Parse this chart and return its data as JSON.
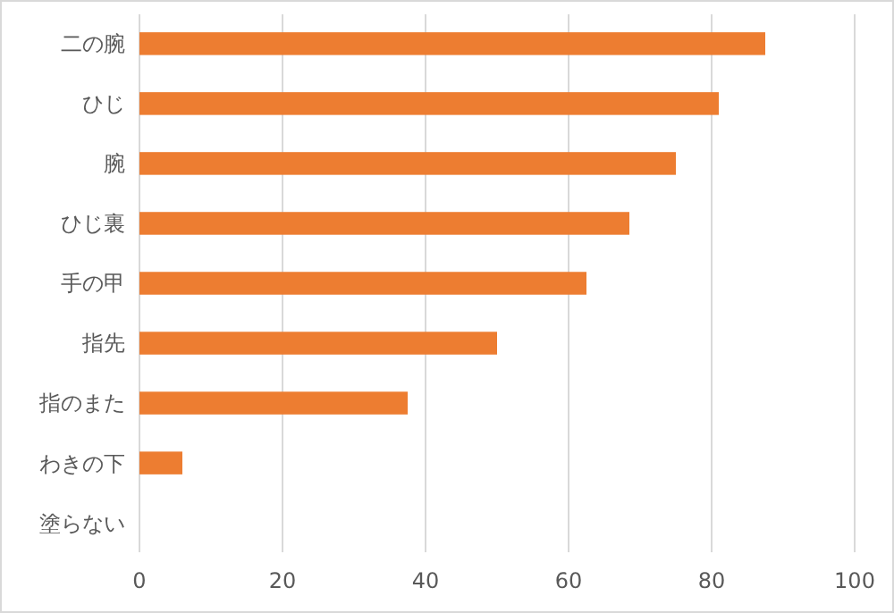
{
  "chart_data": {
    "type": "bar",
    "orientation": "horizontal",
    "categories": [
      "二の腕",
      "ひじ",
      "腕",
      "ひじ裏",
      "手の甲",
      "指先",
      "指のまた",
      "わきの下",
      "塗らない"
    ],
    "values": [
      87.5,
      81,
      75,
      68.5,
      62.5,
      50,
      37.5,
      6,
      0
    ],
    "color": "#ed7d31",
    "xlim": [
      0,
      100
    ],
    "xticks": [
      0,
      20,
      40,
      60,
      80,
      100
    ],
    "grid": "x"
  }
}
